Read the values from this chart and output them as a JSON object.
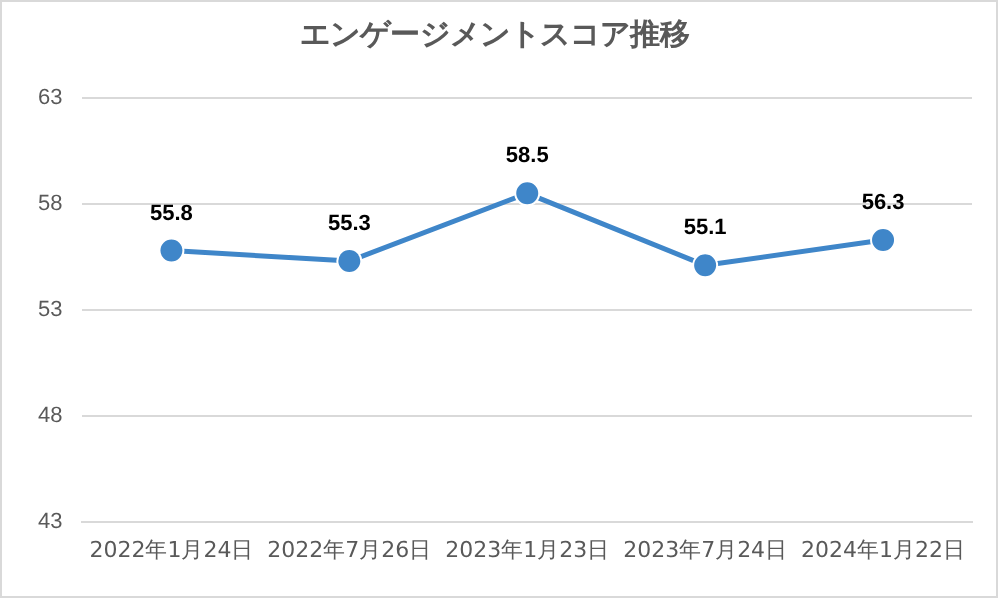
{
  "chart_data": {
    "type": "line",
    "title": "エンゲージメントスコア推移",
    "categories": [
      "2022年1月24日",
      "2022年7月26日",
      "2023年1月23日",
      "2023年7月24日",
      "2024年1月22日"
    ],
    "series": [
      {
        "color": "#3f86c9",
        "values": [
          55.8,
          55.3,
          58.5,
          55.1,
          56.3
        ]
      }
    ],
    "ylim": [
      43,
      63
    ],
    "yticks": [
      43,
      48,
      53,
      58,
      63
    ],
    "grid": "y",
    "marker": "circle",
    "line_style": "solid",
    "data_labels": true,
    "legend": false
  }
}
